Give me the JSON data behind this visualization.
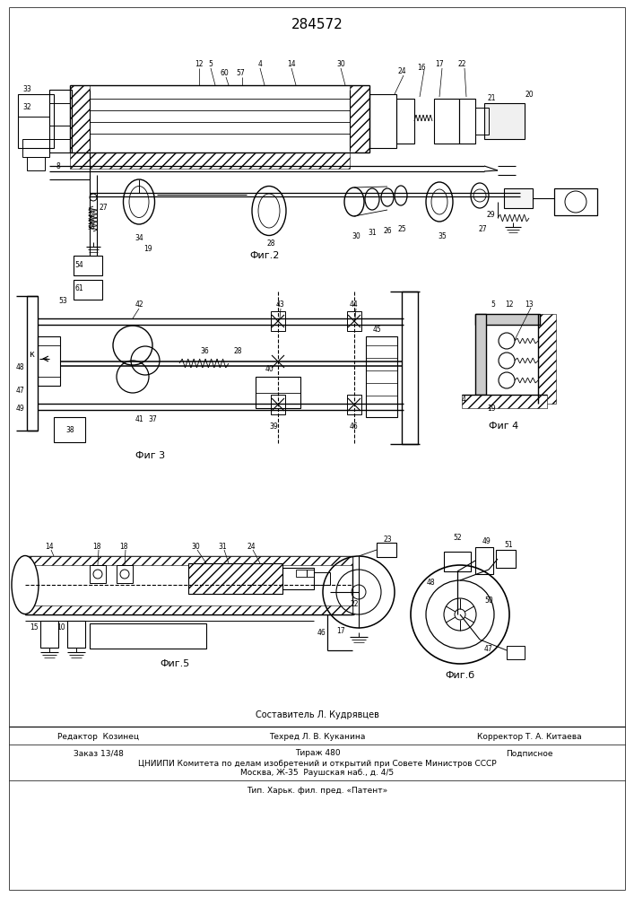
{
  "title": "284572",
  "bg_color": "#ffffff",
  "fig_width": 7.07,
  "fig_height": 10.0,
  "fig2_label": "Фиг.2",
  "fig3_label": "Фиг 3",
  "fig4_label": "Фиг 4",
  "fig5_label": "Фиг.5",
  "fig6_label": "Фиг.б",
  "footer_line1_left": "Редактор  Козинец",
  "footer_line1_center": "Техред Л. В. Куканина",
  "footer_line1_right": "Корректор Т. А. Китаева",
  "footer_line2_left": "Заказ 13/48",
  "footer_line2_center": "Тираж 480",
  "footer_line2_right": "Подписное",
  "footer_line3": "ЦНИИПИ Комитета по делам изобретений и открытий при Совете Министров СССР",
  "footer_line4": "Москва, Ж-35  Раушская наб., д. 4/5",
  "footer_line5": "Тип. Харьк. фил. пред. «Патент»",
  "sestavitel": "Составитель Л. Кудрявцев"
}
